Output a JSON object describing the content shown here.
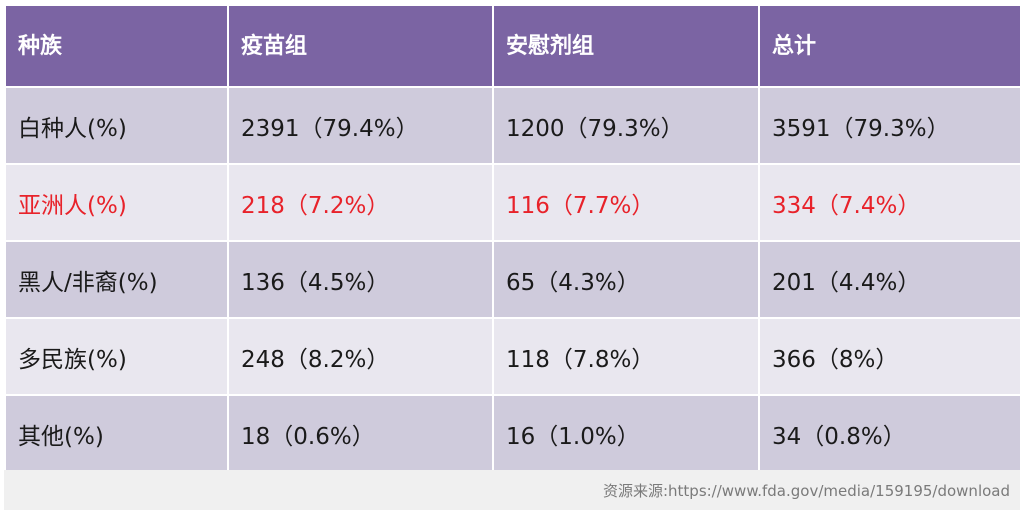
{
  "table": {
    "headers": [
      "种族",
      "疫苗组",
      "安慰剂组",
      "总计"
    ],
    "rows": [
      {
        "cells": [
          "白种人(%)",
          "2391（79.4%）",
          "1200（79.3%）",
          "3591（79.3%）"
        ],
        "highlight": false
      },
      {
        "cells": [
          "亚洲人(%)",
          "218（7.2%）",
          "116（7.7%）",
          "334（7.4%）"
        ],
        "highlight": true
      },
      {
        "cells": [
          "黑人/非裔(%)",
          "136（4.5%）",
          "65（4.3%）",
          "201（4.4%）"
        ],
        "highlight": false
      },
      {
        "cells": [
          "多民族(%)",
          "248（8.2%）",
          "118（7.8%）",
          "366（8%）"
        ],
        "highlight": false
      },
      {
        "cells": [
          "其他(%)",
          "18（0.6%）",
          "16（1.0%）",
          "34（0.8%）"
        ],
        "highlight": false
      }
    ]
  },
  "source": "资源来源:https://www.fda.gov/media/159195/download",
  "colors": {
    "header_bg": "#7b64a3",
    "header_text": "#ffffff",
    "row_dark": "#cfcbdc",
    "row_light": "#e9e7ef",
    "highlight_text": "#e8222a",
    "source_text": "#7a7a7a"
  }
}
